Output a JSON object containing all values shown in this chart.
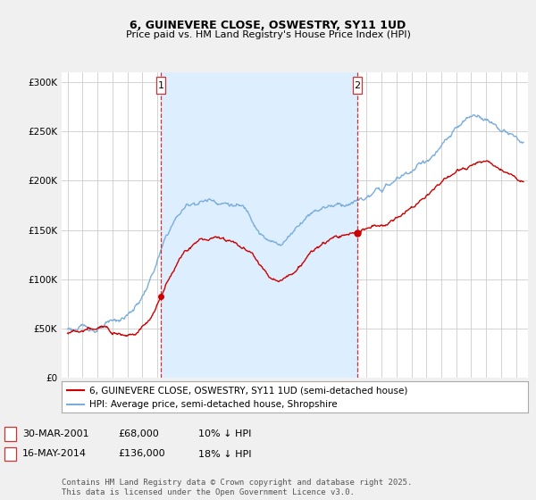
{
  "title": "6, GUINEVERE CLOSE, OSWESTRY, SY11 1UD",
  "subtitle": "Price paid vs. HM Land Registry's House Price Index (HPI)",
  "ylim": [
    0,
    310000
  ],
  "sale1_x": 2001.25,
  "sale2_x": 2014.38,
  "sale1_date": "30-MAR-2001",
  "sale1_price": 68000,
  "sale1_label": "1",
  "sale1_hpi_diff": "10% ↓ HPI",
  "sale2_date": "16-MAY-2014",
  "sale2_price": 136000,
  "sale2_label": "2",
  "sale2_hpi_diff": "18% ↓ HPI",
  "legend_line1": "6, GUINEVERE CLOSE, OSWESTRY, SY11 1UD (semi-detached house)",
  "legend_line2": "HPI: Average price, semi-detached house, Shropshire",
  "footer": "Contains HM Land Registry data © Crown copyright and database right 2025.\nThis data is licensed under the Open Government Licence v3.0.",
  "line_color_red": "#cc0000",
  "line_color_blue": "#7aaddb",
  "shade_color": "#ddeeff",
  "dashed_color": "#cc3333",
  "background_color": "#f0f0f0",
  "plot_bg_color": "#ffffff",
  "grid_color": "#cccccc",
  "title_fontsize": 9,
  "subtitle_fontsize": 8,
  "tick_fontsize": 7.5,
  "legend_fontsize": 7.5,
  "table_fontsize": 8,
  "footer_fontsize": 6.5
}
